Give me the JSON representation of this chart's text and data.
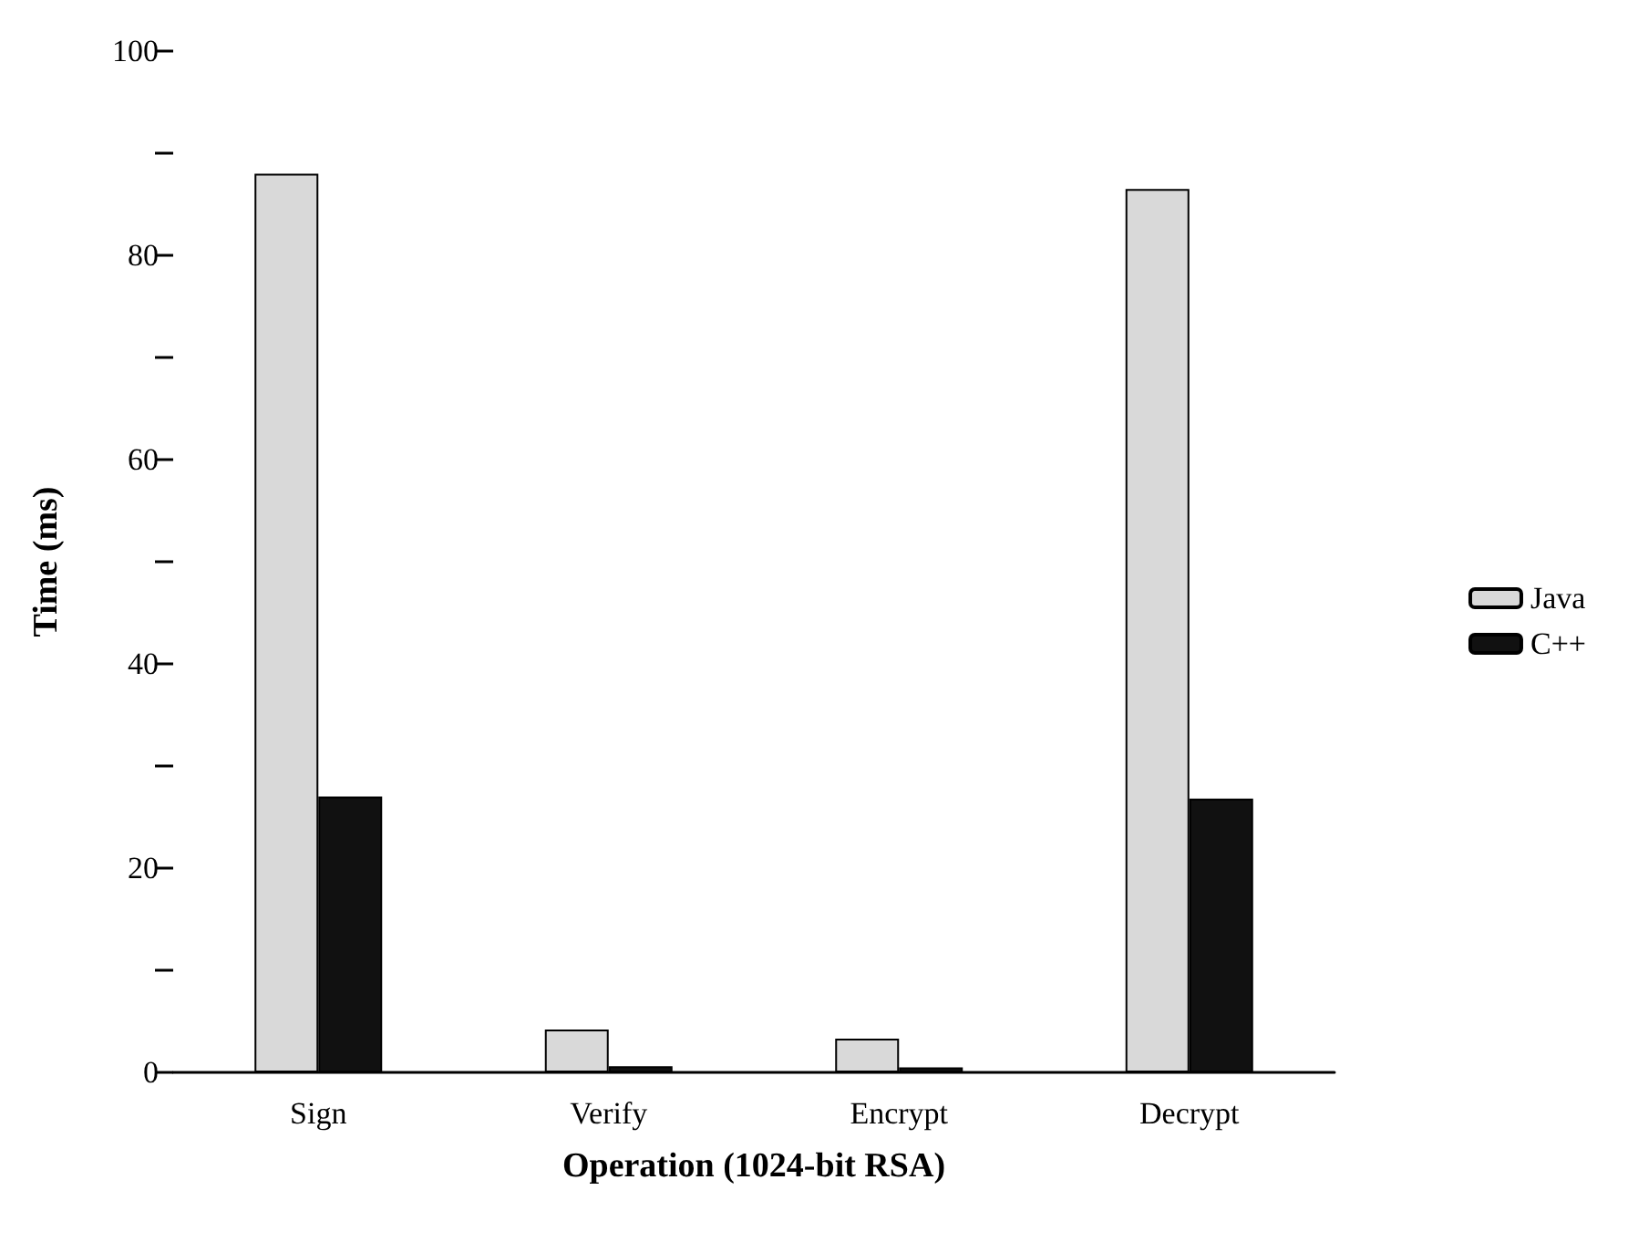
{
  "chart_data": {
    "type": "bar",
    "xlabel": "Operation (1024-bit RSA)",
    "ylabel": "Time (ms)",
    "categories": [
      "Sign",
      "Verify",
      "Encrypt",
      "Decrypt"
    ],
    "series": [
      {
        "name": "Java",
        "color": "#d9d9d9",
        "values": [
          88,
          4.2,
          3.3,
          86.5
        ]
      },
      {
        "name": "C++",
        "color": "#111111",
        "values": [
          27,
          0.6,
          0.5,
          26.8
        ]
      }
    ],
    "ylim": [
      0,
      100
    ],
    "yticks": [
      0,
      {
        "value": 10,
        "label": null
      },
      20,
      {
        "value": 30,
        "label": null
      },
      40,
      {
        "value": 50,
        "label": null
      },
      60,
      {
        "value": 70,
        "label": null
      },
      80,
      {
        "value": 90,
        "label": null
      },
      100
    ],
    "grid": false,
    "legend": "right"
  }
}
